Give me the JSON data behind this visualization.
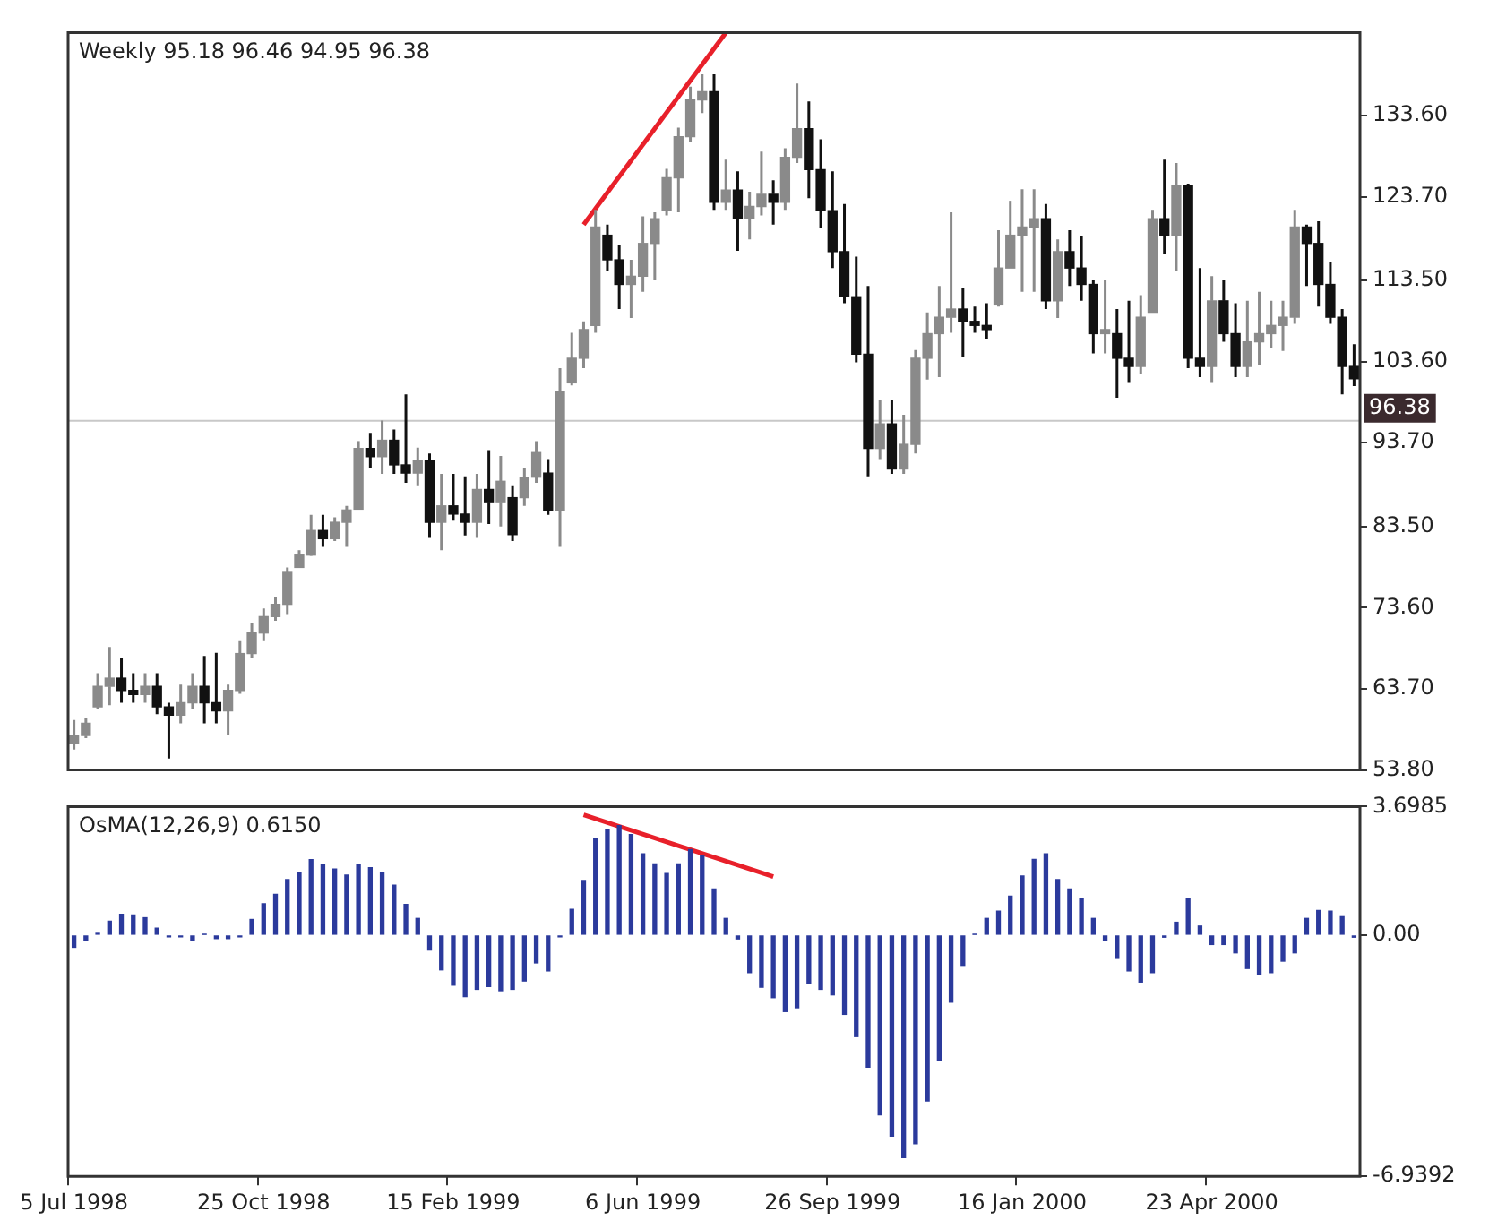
{
  "chart_data": [
    {
      "type": "candlestick",
      "title": "Weekly 95.18 96.46 94.95 96.38",
      "tick_labels": "y",
      "colors": [
        "#8a8a8a",
        "#8a8a8a",
        "#8a8a8a",
        "#8a8a8a",
        "#111111",
        "#111111",
        "#8a8a8a",
        "#111111",
        "#111111",
        "#8a8a8a",
        "#8a8a8a",
        "#111111",
        "#111111",
        "#8a8a8a",
        "#8a8a8a",
        "#8a8a8a",
        "#8a8a8a",
        "#8a8a8a",
        "#8a8a8a",
        "#8a8a8a",
        "#8a8a8a",
        "#111111",
        "#8a8a8a",
        "#8a8a8a",
        "#8a8a8a",
        "#111111",
        "#8a8a8a",
        "#111111",
        "#111111",
        "#8a8a8a",
        "#111111",
        "#8a8a8a",
        "#111111",
        "#111111",
        "#8a8a8a",
        "#111111",
        "#8a8a8a",
        "#111111",
        "#8a8a8a",
        "#8a8a8a",
        "#111111",
        "#8a8a8a",
        "#8a8a8a",
        "#8a8a8a",
        "#8a8a8a",
        "#111111",
        "#111111",
        "#8a8a8a",
        "#8a8a8a",
        "#8a8a8a",
        "#8a8a8a",
        "#8a8a8a",
        "#8a8a8a",
        "#8a8a8a",
        "#111111",
        "#8a8a8a",
        "#111111",
        "#8a8a8a",
        "#8a8a8a",
        "#111111",
        "#8a8a8a",
        "#8a8a8a",
        "#111111",
        "#111111",
        "#111111",
        "#111111",
        "#111111",
        "#111111",
        "#8a8a8a",
        "#111111",
        "#8a8a8a",
        "#8a8a8a",
        "#8a8a8a",
        "#8a8a8a",
        "#8a8a8a",
        "#111111",
        "#111111",
        "#111111",
        "#8a8a8a",
        "#8a8a8a",
        "#8a8a8a",
        "#8a8a8a",
        "#111111",
        "#8a8a8a",
        "#111111",
        "#111111",
        "#111111",
        "#8a8a8a",
        "#111111",
        "#111111",
        "#8a8a8a",
        "#8a8a8a",
        "#111111",
        "#8a8a8a",
        "#111111",
        "#111111",
        "#8a8a8a",
        "#111111",
        "#111111",
        "#8a8a8a",
        "#8a8a8a",
        "#8a8a8a",
        "#8a8a8a",
        "#8a8a8a",
        "#111111",
        "#111111",
        "#111111",
        "#111111",
        "#111111"
      ],
      "categories": [
        null,
        null,
        null,
        null,
        null,
        null,
        null,
        null,
        null,
        null,
        null,
        null,
        null,
        null,
        null,
        null,
        null,
        null,
        null,
        null,
        null,
        null,
        null,
        null,
        null,
        null,
        null,
        null,
        null,
        null,
        null,
        null,
        null,
        null,
        null,
        null,
        null,
        null,
        null,
        null,
        null,
        null,
        null,
        null,
        null,
        null,
        null,
        null,
        null,
        null,
        null,
        null,
        null,
        null,
        null,
        null,
        null,
        null,
        null,
        null,
        null,
        null,
        null,
        null,
        null,
        null,
        null,
        null,
        null,
        null,
        null,
        null,
        null,
        null,
        null,
        null,
        null,
        null,
        null,
        null,
        null,
        null,
        null,
        null,
        null,
        null,
        null,
        null,
        null,
        null,
        null,
        null,
        null,
        null,
        null,
        null,
        null,
        null,
        null,
        null,
        null,
        null,
        null,
        null,
        null,
        null,
        null,
        null,
        null
      ],
      "ohlc": [
        [
          57.0,
          59.9,
          56.3,
          58.0
        ],
        [
          58.0,
          60.2,
          57.7,
          59.5
        ],
        [
          61.5,
          65.6,
          61.3,
          64.0
        ],
        [
          64.0,
          68.8,
          61.7,
          65.0
        ],
        [
          65.0,
          67.4,
          62.0,
          63.5
        ],
        [
          63.5,
          65.6,
          62.0,
          63.0
        ],
        [
          63.0,
          65.6,
          62.0,
          64.0
        ],
        [
          64.0,
          65.6,
          60.6,
          61.5
        ],
        [
          61.5,
          62.0,
          55.2,
          60.5
        ],
        [
          60.5,
          64.2,
          59.5,
          62.0
        ],
        [
          62.0,
          65.6,
          61.3,
          64.0
        ],
        [
          64.0,
          67.7,
          59.5,
          62.0
        ],
        [
          62.0,
          68.1,
          59.5,
          61.0
        ],
        [
          61.0,
          64.2,
          58.1,
          63.5
        ],
        [
          63.5,
          69.5,
          63.1,
          68.0
        ],
        [
          68.0,
          71.7,
          67.4,
          70.5
        ],
        [
          70.5,
          73.5,
          69.5,
          72.5
        ],
        [
          72.5,
          74.9,
          72.0,
          74.0
        ],
        [
          74.0,
          78.5,
          72.8,
          78.0
        ],
        [
          78.5,
          80.6,
          78.5,
          80.0
        ],
        [
          80.0,
          84.9,
          79.9,
          83.0
        ],
        [
          83.0,
          84.9,
          81.0,
          82.0
        ],
        [
          82.0,
          84.6,
          81.7,
          84.0
        ],
        [
          84.0,
          86.0,
          81.0,
          85.5
        ],
        [
          85.6,
          93.9,
          85.6,
          93.0
        ],
        [
          93.0,
          94.9,
          90.6,
          92.0
        ],
        [
          92.0,
          96.4,
          89.9,
          94.0
        ],
        [
          94.0,
          95.3,
          89.9,
          91.0
        ],
        [
          91.0,
          99.6,
          88.8,
          90.0
        ],
        [
          90.0,
          93.1,
          88.5,
          91.5
        ],
        [
          91.5,
          92.4,
          82.1,
          84.0
        ],
        [
          84.0,
          89.9,
          80.6,
          86.0
        ],
        [
          86.0,
          89.9,
          84.2,
          85.0
        ],
        [
          85.0,
          89.6,
          82.4,
          84.0
        ],
        [
          84.0,
          89.9,
          82.1,
          88.0
        ],
        [
          88.0,
          92.8,
          83.8,
          86.5
        ],
        [
          86.5,
          92.1,
          83.5,
          89.0
        ],
        [
          87.0,
          88.5,
          81.7,
          82.5
        ],
        [
          87.0,
          90.6,
          86.0,
          89.5
        ],
        [
          89.5,
          93.9,
          88.8,
          92.5
        ],
        [
          90.0,
          91.7,
          84.9,
          85.5
        ],
        [
          85.5,
          102.8,
          81.0,
          100.0
        ],
        [
          101.0,
          107.1,
          100.7,
          104.0
        ],
        [
          104.0,
          108.5,
          102.8,
          107.5
        ],
        [
          108.0,
          122.1,
          107.1,
          120.0
        ],
        [
          119.0,
          120.3,
          114.6,
          116.0
        ],
        [
          116.0,
          117.8,
          110.0,
          113.0
        ],
        [
          113.0,
          116.0,
          108.9,
          114.0
        ],
        [
          114.0,
          121.3,
          112.1,
          118.0
        ],
        [
          118.0,
          121.8,
          113.5,
          121.0
        ],
        [
          122.0,
          127.1,
          121.4,
          126.0
        ],
        [
          126.0,
          132.1,
          121.8,
          131.0
        ],
        [
          131.0,
          137.1,
          130.3,
          135.5
        ],
        [
          135.5,
          138.6,
          133.9,
          136.5
        ],
        [
          136.5,
          138.6,
          122.1,
          123.0
        ],
        [
          123.0,
          128.2,
          122.1,
          124.5
        ],
        [
          124.5,
          126.8,
          117.1,
          121.0
        ],
        [
          121.0,
          124.3,
          118.5,
          122.5
        ],
        [
          122.5,
          129.2,
          121.4,
          124.0
        ],
        [
          124.0,
          125.7,
          120.3,
          123.0
        ],
        [
          123.0,
          129.6,
          122.1,
          128.5
        ],
        [
          128.5,
          137.5,
          127.8,
          132.0
        ],
        [
          132.0,
          135.3,
          123.5,
          127.0
        ],
        [
          127.0,
          130.7,
          119.9,
          122.0
        ],
        [
          122.0,
          126.8,
          115.0,
          117.0
        ],
        [
          117.0,
          122.8,
          110.7,
          111.5
        ],
        [
          111.5,
          116.4,
          103.5,
          104.5
        ],
        [
          104.5,
          112.8,
          89.6,
          93.0
        ],
        [
          93.0,
          98.9,
          91.7,
          96.0
        ],
        [
          96.0,
          98.9,
          89.9,
          90.5
        ],
        [
          90.5,
          97.1,
          89.9,
          93.5
        ],
        [
          93.5,
          105.0,
          92.4,
          104.0
        ],
        [
          104.0,
          109.6,
          101.4,
          107.0
        ],
        [
          107.0,
          112.8,
          101.7,
          109.0
        ],
        [
          109.0,
          121.8,
          107.1,
          110.0
        ],
        [
          110.0,
          112.5,
          104.2,
          108.5
        ],
        [
          108.5,
          110.3,
          107.1,
          108.0
        ],
        [
          108.0,
          110.7,
          106.4,
          107.5
        ],
        [
          110.5,
          119.6,
          110.3,
          115.0
        ],
        [
          115.0,
          123.2,
          115.0,
          119.0
        ],
        [
          119.0,
          124.6,
          112.1,
          120.0
        ],
        [
          120.0,
          124.6,
          112.1,
          121.0
        ],
        [
          121.0,
          122.8,
          110.0,
          111.0
        ],
        [
          111.0,
          118.5,
          108.9,
          117.0
        ],
        [
          117.0,
          119.6,
          112.8,
          115.0
        ],
        [
          115.0,
          118.9,
          111.0,
          113.0
        ],
        [
          113.0,
          113.5,
          104.6,
          107.0
        ],
        [
          107.0,
          113.5,
          104.6,
          107.5
        ],
        [
          107.0,
          110.0,
          99.2,
          104.0
        ],
        [
          104.0,
          111.0,
          101.0,
          103.0
        ],
        [
          103.0,
          111.7,
          102.1,
          109.0
        ],
        [
          109.6,
          122.1,
          109.6,
          121.0
        ],
        [
          121.0,
          128.2,
          116.7,
          119.0
        ],
        [
          119.0,
          127.8,
          114.6,
          125.0
        ],
        [
          125.0,
          125.3,
          102.8,
          104.0
        ],
        [
          104.0,
          115.0,
          101.7,
          103.0
        ],
        [
          103.0,
          114.0,
          101.0,
          111.0
        ],
        [
          111.0,
          113.5,
          106.0,
          107.0
        ],
        [
          107.0,
          110.7,
          101.7,
          103.0
        ],
        [
          103.0,
          111.0,
          101.7,
          106.0
        ],
        [
          106.0,
          112.1,
          103.2,
          107.0
        ],
        [
          107.0,
          111.0,
          105.3,
          108.0
        ],
        [
          108.0,
          111.0,
          104.9,
          109.0
        ],
        [
          109.0,
          122.1,
          108.2,
          120.0
        ],
        [
          120.0,
          120.3,
          112.8,
          118.0
        ],
        [
          118.0,
          120.7,
          110.3,
          113.0
        ],
        [
          113.0,
          115.7,
          108.2,
          109.0
        ],
        [
          109.0,
          110.0,
          99.6,
          103.0
        ],
        [
          103.0,
          105.7,
          100.6,
          101.5
        ]
      ],
      "series": [
        {
          "type": "line",
          "color": "#e8202a",
          "values": [
            null,
            null,
            null,
            null,
            null,
            null,
            null,
            null,
            null,
            null,
            null,
            null,
            null,
            null,
            null,
            null,
            null,
            null,
            null,
            null,
            null,
            null,
            null,
            null,
            null,
            null,
            null,
            null,
            null,
            null,
            null,
            null,
            null,
            null,
            null,
            null,
            null,
            null,
            null,
            null,
            null,
            null,
            null,
            120.3,
            null,
            null,
            null,
            null,
            null,
            null,
            null,
            null,
            null,
            null,
            null,
            143.7,
            null,
            null,
            null,
            null,
            null,
            null,
            null,
            null,
            null,
            null,
            null,
            null,
            null,
            null,
            null,
            null,
            null,
            null,
            null,
            null,
            null,
            null,
            null,
            null,
            null,
            null,
            null,
            null,
            null,
            null,
            null,
            null,
            null,
            null,
            null,
            null,
            null,
            null,
            null,
            null,
            null,
            null,
            null,
            null,
            null,
            null,
            null,
            null,
            null,
            null,
            null,
            null,
            null
          ]
        }
      ],
      "ylim": [
        53.8,
        143.7
      ],
      "yticks": [
        {
          "value": 53.8,
          "label": "53.80"
        },
        {
          "value": 63.7,
          "label": "63.70"
        },
        {
          "value": 73.6,
          "label": "73.60"
        },
        {
          "value": 83.5,
          "label": "83.50"
        },
        {
          "value": 93.7,
          "label": "93.70"
        },
        {
          "value": 103.6,
          "label": "103.60"
        },
        {
          "value": 113.5,
          "label": "113.50"
        },
        {
          "value": 123.7,
          "label": "123.70"
        },
        {
          "value": 133.6,
          "label": "133.60"
        }
      ],
      "ref_lines": [
        {
          "axis": "y",
          "value": 96.38,
          "label": "96.38",
          "color": "#c8c8c8"
        }
      ]
    },
    {
      "type": "bar",
      "title": "OsMA(12,26,9) 0.6150",
      "categories": [
        "5 Jul 1998",
        null,
        null,
        null,
        null,
        null,
        null,
        null,
        null,
        null,
        null,
        null,
        null,
        null,
        null,
        null,
        "25 Oct 1998",
        null,
        null,
        null,
        null,
        null,
        null,
        null,
        null,
        null,
        null,
        null,
        null,
        null,
        null,
        null,
        "15 Feb 1999",
        null,
        null,
        null,
        null,
        null,
        null,
        null,
        null,
        null,
        null,
        null,
        null,
        null,
        null,
        null,
        "6 Jun 1999",
        null,
        null,
        null,
        null,
        null,
        null,
        null,
        null,
        null,
        null,
        null,
        null,
        null,
        null,
        null,
        "26 Sep 1999",
        null,
        null,
        null,
        null,
        null,
        null,
        null,
        null,
        null,
        null,
        null,
        null,
        null,
        null,
        null,
        "16 Jan 2000",
        null,
        null,
        null,
        null,
        null,
        null,
        null,
        null,
        null,
        null,
        null,
        null,
        null,
        null,
        null,
        "23 Apr 2000",
        null,
        null,
        null,
        null,
        null,
        null,
        null,
        null,
        null,
        null,
        null,
        null
      ],
      "series": [
        {
          "color": "#2b3a9c",
          "values": [
            -0.35,
            -0.15,
            0.05,
            0.4,
            0.6,
            0.58,
            0.5,
            0.2,
            -0.05,
            -0.05,
            -0.15,
            0.02,
            -0.1,
            -0.1,
            -0.05,
            0.45,
            0.9,
            1.17,
            1.6,
            1.8,
            2.17,
            2.02,
            1.9,
            1.73,
            2.02,
            1.94,
            1.8,
            1.44,
            0.88,
            0.48,
            -0.43,
            -1.0,
            -1.44,
            -1.77,
            -1.56,
            -1.48,
            -1.6,
            -1.56,
            -1.32,
            -0.8,
            -1.03,
            -0.05,
            0.74,
            1.57,
            2.79,
            3.05,
            3.15,
            2.89,
            2.34,
            2.05,
            1.77,
            2.05,
            2.46,
            2.3,
            1.33,
            0.48,
            -0.11,
            -1.08,
            -1.5,
            -1.8,
            -2.2,
            -2.09,
            -1.4,
            -1.56,
            -1.72,
            -2.28,
            -2.92,
            -3.8,
            -5.17,
            -5.78,
            -6.4,
            -6.0,
            -4.77,
            -3.6,
            -1.93,
            -0.87,
            0.02,
            0.48,
            0.69,
            1.12,
            1.7,
            2.18,
            2.34,
            1.6,
            1.33,
            1.06,
            0.48,
            -0.16,
            -0.67,
            -1.03,
            -1.35,
            -1.08,
            -0.06,
            0.37,
            1.06,
            0.26,
            -0.27,
            -0.27,
            -0.51,
            -0.96,
            -1.12,
            -1.08,
            -0.75,
            -0.51,
            0.48,
            0.71,
            0.69,
            0.53,
            -0.06
          ]
        },
        {
          "type": "line",
          "color": "#e8202a",
          "values": [
            null,
            null,
            null,
            null,
            null,
            null,
            null,
            null,
            null,
            null,
            null,
            null,
            null,
            null,
            null,
            null,
            null,
            null,
            null,
            null,
            null,
            null,
            null,
            null,
            null,
            null,
            null,
            null,
            null,
            null,
            null,
            null,
            null,
            null,
            null,
            null,
            null,
            null,
            null,
            null,
            null,
            null,
            null,
            3.46,
            null,
            null,
            null,
            null,
            null,
            null,
            null,
            null,
            null,
            null,
            null,
            null,
            null,
            null,
            null,
            1.68,
            null,
            null,
            null,
            null,
            null,
            null,
            null,
            null,
            null,
            null,
            null,
            null,
            null,
            null,
            null,
            null,
            null,
            null,
            null,
            null,
            null,
            null,
            null,
            null,
            null,
            null,
            null,
            null,
            null,
            null,
            null,
            null,
            null,
            null,
            null,
            null,
            null,
            null,
            null,
            null,
            null,
            null,
            null,
            null,
            null,
            null,
            null,
            null,
            null
          ]
        }
      ],
      "ylim": [
        -6.9392,
        3.6985
      ],
      "yticks": [
        {
          "value": -6.9392,
          "label": "-6.9392"
        },
        {
          "value": 0,
          "label": "0.00"
        },
        {
          "value": 3.6985,
          "label": "3.6985"
        }
      ]
    }
  ]
}
